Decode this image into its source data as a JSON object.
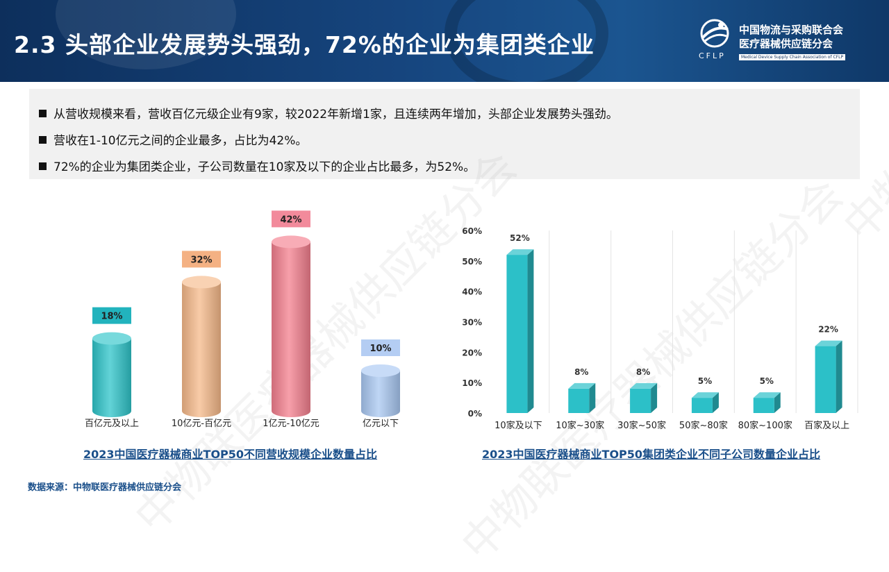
{
  "header": {
    "title": "2.3 头部企业发展势头强劲，72%的企业为集团类企业",
    "logo": {
      "abbr": "CFLP",
      "cn_line1": "中国物流与采购联合会",
      "cn_line2": "医疗器械供应链分会",
      "en": "Medical Device Supply Chain Association of CFLP"
    }
  },
  "bullets": [
    "从营收规模来看，营收百亿元级企业有9家，较2022年新增1家，且连续两年增加，头部企业发展势头强劲。",
    "营收在1-10亿元之间的企业最多，占比为42%。",
    "72%的企业为集团类企业，子公司数量在10家及以下的企业占比最多，为52%。"
  ],
  "watermark_text": "中物联医疗器械供应链分会",
  "chart_data": [
    {
      "type": "bar",
      "title": "2023中国医疗器械商业TOP50不同营收规模企业数量占比",
      "categories": [
        "百亿元及以上",
        "10亿元-百亿元",
        "1亿元-10亿元",
        "亿元以下"
      ],
      "values": [
        18,
        32,
        42,
        10
      ],
      "labels": [
        "18%",
        "32%",
        "42%",
        "10%"
      ],
      "unit": "%",
      "colors": [
        "#2ec4c9",
        "#f6b98a",
        "#f47f8e",
        "#a9c8f2"
      ],
      "label_colors": [
        "#22b3bd",
        "#f4b183",
        "#f28a9b",
        "#b4cdf3"
      ]
    },
    {
      "type": "bar",
      "title": "2023中国医疗器械商业TOP50集团类企业不同子公司数量企业占比",
      "categories": [
        "10家及以下",
        "10家~30家",
        "30家~50家",
        "50家~80家",
        "80家~100家",
        "百家及以上"
      ],
      "values": [
        52,
        8,
        8,
        5,
        5,
        22
      ],
      "labels": [
        "52%",
        "8%",
        "8%",
        "5%",
        "5%",
        "22%"
      ],
      "ylim": [
        0,
        60
      ],
      "yticks": [
        "0%",
        "10%",
        "20%",
        "30%",
        "40%",
        "50%",
        "60%"
      ],
      "grid": "vertical",
      "color": "#2cc0c8"
    }
  ],
  "source": "数据来源：中物联医疗器械供应链分会"
}
